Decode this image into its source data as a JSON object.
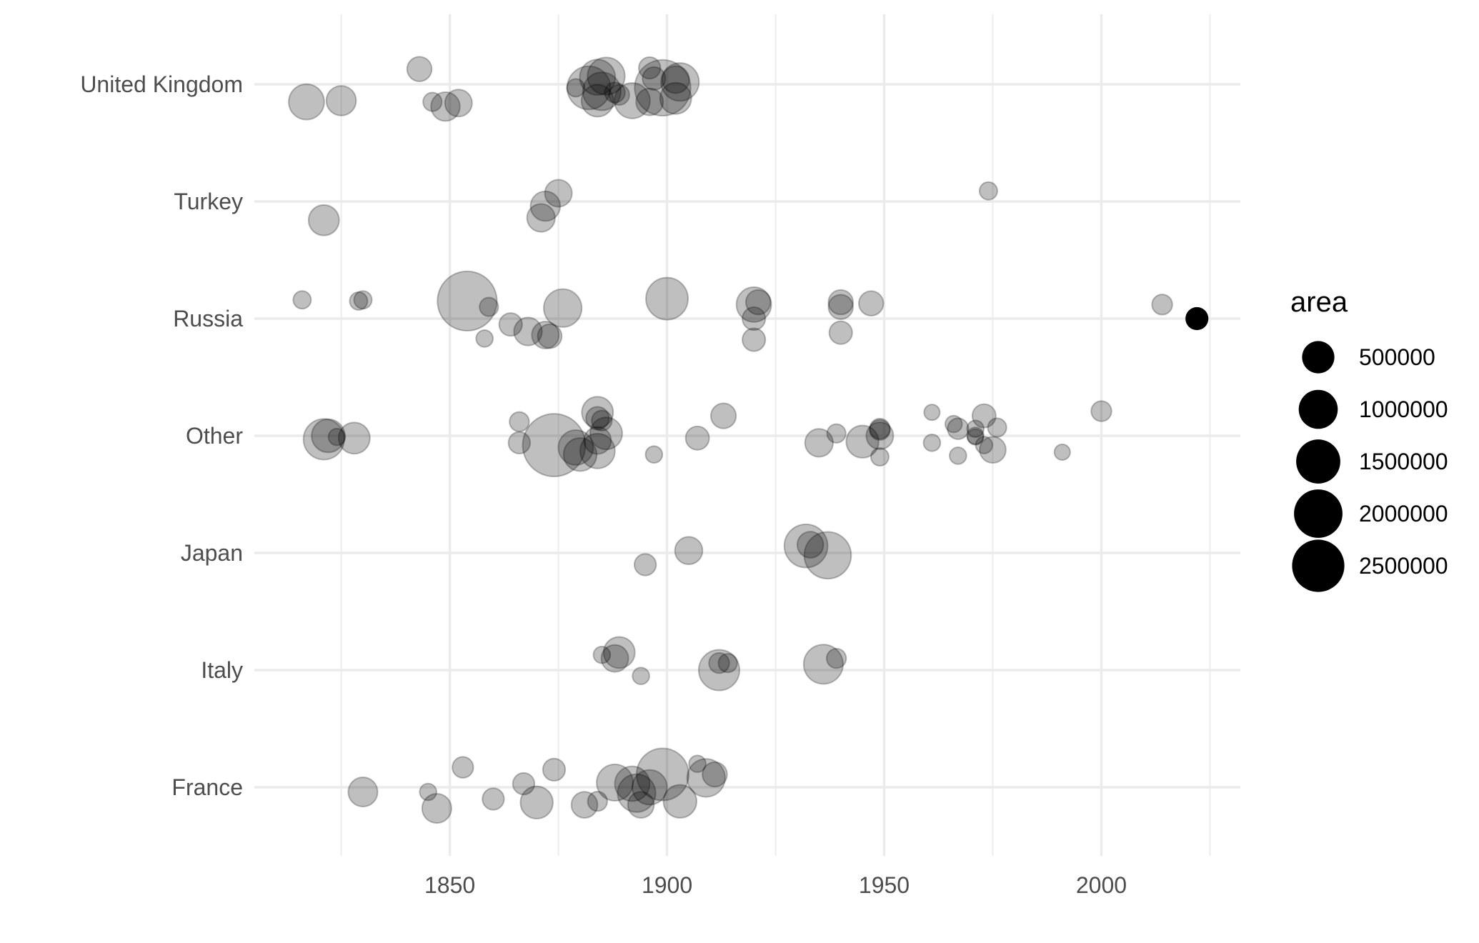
{
  "chart_data": {
    "type": "scatter",
    "title": "",
    "xlabel": "",
    "ylabel": "",
    "xlim": [
      1805,
      2032
    ],
    "x_ticks": [
      1850,
      1900,
      1950,
      2000
    ],
    "categories": [
      "France",
      "Italy",
      "Japan",
      "Other",
      "Russia",
      "Turkey",
      "United Kingdom"
    ],
    "grid": true,
    "colors": {
      "point": "#000000",
      "grid": "#ebebeb",
      "text": "#4d4d4d"
    },
    "point_alpha": 0.25,
    "legend": {
      "title": "area",
      "placement": "right",
      "entries": [
        {
          "label": "500000",
          "value": 500000
        },
        {
          "label": "1000000",
          "value": 1000000
        },
        {
          "label": "1500000",
          "value": 1500000
        },
        {
          "label": "2000000",
          "value": 2000000
        },
        {
          "label": "2500000",
          "value": 2500000
        }
      ]
    },
    "points": [
      {
        "category": "United Kingdom",
        "x": 1843,
        "y": 0.13,
        "area": 150000
      },
      {
        "category": "United Kingdom",
        "x": 1817,
        "y": -0.15,
        "area": 420000
      },
      {
        "category": "United Kingdom",
        "x": 1825,
        "y": -0.14,
        "area": 260000
      },
      {
        "category": "United Kingdom",
        "x": 1846,
        "y": -0.15,
        "area": 60000
      },
      {
        "category": "United Kingdom",
        "x": 1849,
        "y": -0.19,
        "area": 240000
      },
      {
        "category": "United Kingdom",
        "x": 1852,
        "y": -0.16,
        "area": 200000
      },
      {
        "category": "United Kingdom",
        "x": 1879,
        "y": -0.03,
        "area": 50000
      },
      {
        "category": "United Kingdom",
        "x": 1882,
        "y": -0.03,
        "area": 700000
      },
      {
        "category": "United Kingdom",
        "x": 1884,
        "y": 0.06,
        "area": 420000
      },
      {
        "category": "United Kingdom",
        "x": 1886,
        "y": 0.07,
        "area": 480000
      },
      {
        "category": "United Kingdom",
        "x": 1884,
        "y": -0.14,
        "area": 320000
      },
      {
        "category": "United Kingdom",
        "x": 1885,
        "y": -0.06,
        "area": 500000
      },
      {
        "category": "United Kingdom",
        "x": 1888,
        "y": -0.07,
        "area": 80000
      },
      {
        "category": "United Kingdom",
        "x": 1889,
        "y": -0.09,
        "area": 80000
      },
      {
        "category": "United Kingdom",
        "x": 1892,
        "y": -0.14,
        "area": 420000
      },
      {
        "category": "United Kingdom",
        "x": 1896,
        "y": 0.14,
        "area": 100000
      },
      {
        "category": "United Kingdom",
        "x": 1897,
        "y": 0.05,
        "area": 120000
      },
      {
        "category": "United Kingdom",
        "x": 1896,
        "y": -0.15,
        "area": 200000
      },
      {
        "category": "United Kingdom",
        "x": 1899,
        "y": -0.03,
        "area": 1300000
      },
      {
        "category": "United Kingdom",
        "x": 1902,
        "y": 0.04,
        "area": 200000
      },
      {
        "category": "United Kingdom",
        "x": 1903,
        "y": 0.02,
        "area": 500000
      },
      {
        "category": "United Kingdom",
        "x": 1902,
        "y": -0.12,
        "area": 300000
      },
      {
        "category": "Turkey",
        "x": 1821,
        "y": -0.16,
        "area": 280000
      },
      {
        "category": "Turkey",
        "x": 1875,
        "y": 0.07,
        "area": 200000
      },
      {
        "category": "Turkey",
        "x": 1872,
        "y": -0.04,
        "area": 260000
      },
      {
        "category": "Turkey",
        "x": 1871,
        "y": -0.14,
        "area": 220000
      },
      {
        "category": "Turkey",
        "x": 1974,
        "y": 0.09,
        "area": 50000
      },
      {
        "category": "Russia",
        "x": 1816,
        "y": 0.16,
        "area": 50000
      },
      {
        "category": "Russia",
        "x": 1829,
        "y": 0.15,
        "area": 50000
      },
      {
        "category": "Russia",
        "x": 1830,
        "y": 0.16,
        "area": 50000
      },
      {
        "category": "Russia",
        "x": 1854,
        "y": 0.15,
        "area": 1500000
      },
      {
        "category": "Russia",
        "x": 1859,
        "y": 0.1,
        "area": 60000
      },
      {
        "category": "Russia",
        "x": 1864,
        "y": -0.05,
        "area": 120000
      },
      {
        "category": "Russia",
        "x": 1858,
        "y": -0.17,
        "area": 40000
      },
      {
        "category": "Russia",
        "x": 1868,
        "y": -0.11,
        "area": 220000
      },
      {
        "category": "Russia",
        "x": 1872,
        "y": -0.14,
        "area": 200000
      },
      {
        "category": "Russia",
        "x": 1873,
        "y": -0.15,
        "area": 140000
      },
      {
        "category": "Russia",
        "x": 1876,
        "y": 0.09,
        "area": 500000
      },
      {
        "category": "Russia",
        "x": 1900,
        "y": 0.17,
        "area": 650000
      },
      {
        "category": "Russia",
        "x": 1920,
        "y": 0.12,
        "area": 400000
      },
      {
        "category": "Russia",
        "x": 1921,
        "y": 0.14,
        "area": 150000
      },
      {
        "category": "Russia",
        "x": 1920,
        "y": 0.0,
        "area": 120000
      },
      {
        "category": "Russia",
        "x": 1920,
        "y": -0.18,
        "area": 120000
      },
      {
        "category": "Russia",
        "x": 1940,
        "y": 0.14,
        "area": 150000
      },
      {
        "category": "Russia",
        "x": 1940,
        "y": 0.1,
        "area": 150000
      },
      {
        "category": "Russia",
        "x": 1940,
        "y": -0.12,
        "area": 120000
      },
      {
        "category": "Russia",
        "x": 1947,
        "y": 0.13,
        "area": 150000
      },
      {
        "category": "Russia",
        "x": 2014,
        "y": 0.12,
        "area": 80000
      },
      {
        "category": "Russia",
        "x": 2022,
        "y": 0.0,
        "area": 120000,
        "solid": true
      },
      {
        "category": "Other",
        "x": 1821,
        "y": -0.03,
        "area": 600000
      },
      {
        "category": "Other",
        "x": 1822,
        "y": 0.0,
        "area": 350000
      },
      {
        "category": "Other",
        "x": 1824,
        "y": -0.01,
        "area": 40000
      },
      {
        "category": "Other",
        "x": 1828,
        "y": -0.02,
        "area": 300000
      },
      {
        "category": "Other",
        "x": 1866,
        "y": 0.12,
        "area": 70000
      },
      {
        "category": "Other",
        "x": 1866,
        "y": -0.06,
        "area": 100000
      },
      {
        "category": "Other",
        "x": 1874,
        "y": -0.08,
        "area": 1700000
      },
      {
        "category": "Other",
        "x": 1879,
        "y": -0.1,
        "area": 400000
      },
      {
        "category": "Other",
        "x": 1880,
        "y": -0.16,
        "area": 350000
      },
      {
        "category": "Other",
        "x": 1884,
        "y": 0.2,
        "area": 300000
      },
      {
        "category": "Other",
        "x": 1884,
        "y": 0.15,
        "area": 120000
      },
      {
        "category": "Other",
        "x": 1885,
        "y": 0.13,
        "area": 80000
      },
      {
        "category": "Other",
        "x": 1886,
        "y": 0.02,
        "area": 320000
      },
      {
        "category": "Other",
        "x": 1884,
        "y": -0.04,
        "area": 200000
      },
      {
        "category": "Other",
        "x": 1884,
        "y": -0.13,
        "area": 400000
      },
      {
        "category": "Other",
        "x": 1897,
        "y": -0.16,
        "area": 40000
      },
      {
        "category": "Other",
        "x": 1907,
        "y": -0.02,
        "area": 130000
      },
      {
        "category": "Other",
        "x": 1913,
        "y": 0.17,
        "area": 160000
      },
      {
        "category": "Other",
        "x": 1935,
        "y": -0.06,
        "area": 220000
      },
      {
        "category": "Other",
        "x": 1939,
        "y": 0.02,
        "area": 60000
      },
      {
        "category": "Other",
        "x": 1945,
        "y": -0.05,
        "area": 330000
      },
      {
        "category": "Other",
        "x": 1949,
        "y": 0.06,
        "area": 80000
      },
      {
        "category": "Other",
        "x": 1949,
        "y": 0.05,
        "area": 80000
      },
      {
        "category": "Other",
        "x": 1949,
        "y": 0.0,
        "area": 200000
      },
      {
        "category": "Other",
        "x": 1949,
        "y": -0.18,
        "area": 50000
      },
      {
        "category": "Other",
        "x": 1961,
        "y": 0.2,
        "area": 30000
      },
      {
        "category": "Other",
        "x": 1961,
        "y": -0.06,
        "area": 40000
      },
      {
        "category": "Other",
        "x": 1966,
        "y": 0.1,
        "area": 40000
      },
      {
        "category": "Other",
        "x": 1967,
        "y": 0.06,
        "area": 90000
      },
      {
        "category": "Other",
        "x": 1967,
        "y": -0.17,
        "area": 40000
      },
      {
        "category": "Other",
        "x": 1971,
        "y": 0.06,
        "area": 40000
      },
      {
        "category": "Other",
        "x": 1971,
        "y": 0.0,
        "area": 40000
      },
      {
        "category": "Other",
        "x": 1971,
        "y": -0.01,
        "area": 30000
      },
      {
        "category": "Other",
        "x": 1973,
        "y": 0.17,
        "area": 130000
      },
      {
        "category": "Other",
        "x": 1973,
        "y": -0.08,
        "area": 40000
      },
      {
        "category": "Other",
        "x": 1975,
        "y": -0.12,
        "area": 180000
      },
      {
        "category": "Other",
        "x": 1976,
        "y": 0.07,
        "area": 60000
      },
      {
        "category": "Other",
        "x": 1991,
        "y": -0.14,
        "area": 30000
      },
      {
        "category": "Other",
        "x": 2000,
        "y": 0.21,
        "area": 80000
      },
      {
        "category": "Japan",
        "x": 1895,
        "y": -0.1,
        "area": 100000
      },
      {
        "category": "Japan",
        "x": 1905,
        "y": 0.02,
        "area": 210000
      },
      {
        "category": "Japan",
        "x": 1932,
        "y": 0.06,
        "area": 700000
      },
      {
        "category": "Japan",
        "x": 1933,
        "y": 0.07,
        "area": 180000
      },
      {
        "category": "Japan",
        "x": 1937,
        "y": -0.02,
        "area": 850000
      },
      {
        "category": "Italy",
        "x": 1885,
        "y": 0.13,
        "area": 40000
      },
      {
        "category": "Italy",
        "x": 1889,
        "y": 0.15,
        "area": 300000
      },
      {
        "category": "Italy",
        "x": 1888,
        "y": 0.1,
        "area": 200000
      },
      {
        "category": "Italy",
        "x": 1894,
        "y": -0.05,
        "area": 40000
      },
      {
        "category": "Italy",
        "x": 1912,
        "y": 0.06,
        "area": 80000
      },
      {
        "category": "Italy",
        "x": 1914,
        "y": 0.06,
        "area": 60000
      },
      {
        "category": "Italy",
        "x": 1912,
        "y": 0.0,
        "area": 600000
      },
      {
        "category": "Italy",
        "x": 1936,
        "y": 0.05,
        "area": 550000
      },
      {
        "category": "Italy",
        "x": 1939,
        "y": 0.1,
        "area": 70000
      },
      {
        "category": "France",
        "x": 1830,
        "y": -0.04,
        "area": 250000
      },
      {
        "category": "France",
        "x": 1845,
        "y": -0.04,
        "area": 40000
      },
      {
        "category": "France",
        "x": 1847,
        "y": -0.18,
        "area": 250000
      },
      {
        "category": "France",
        "x": 1853,
        "y": 0.17,
        "area": 90000
      },
      {
        "category": "France",
        "x": 1860,
        "y": -0.1,
        "area": 100000
      },
      {
        "category": "France",
        "x": 1867,
        "y": 0.03,
        "area": 100000
      },
      {
        "category": "France",
        "x": 1870,
        "y": -0.13,
        "area": 330000
      },
      {
        "category": "France",
        "x": 1874,
        "y": 0.15,
        "area": 110000
      },
      {
        "category": "France",
        "x": 1881,
        "y": -0.15,
        "area": 180000
      },
      {
        "category": "France",
        "x": 1884,
        "y": -0.12,
        "area": 70000
      },
      {
        "category": "France",
        "x": 1888,
        "y": 0.04,
        "area": 450000
      },
      {
        "category": "France",
        "x": 1892,
        "y": 0.03,
        "area": 400000
      },
      {
        "category": "France",
        "x": 1893,
        "y": -0.05,
        "area": 500000
      },
      {
        "category": "France",
        "x": 1894,
        "y": -0.15,
        "area": 180000
      },
      {
        "category": "France",
        "x": 1896,
        "y": 0.0,
        "area": 400000
      },
      {
        "category": "France",
        "x": 1899,
        "y": 0.11,
        "area": 1100000
      },
      {
        "category": "France",
        "x": 1903,
        "y": -0.12,
        "area": 350000
      },
      {
        "category": "France",
        "x": 1907,
        "y": 0.2,
        "area": 40000
      },
      {
        "category": "France",
        "x": 1909,
        "y": 0.08,
        "area": 500000
      },
      {
        "category": "France",
        "x": 1911,
        "y": 0.11,
        "area": 150000
      }
    ]
  }
}
